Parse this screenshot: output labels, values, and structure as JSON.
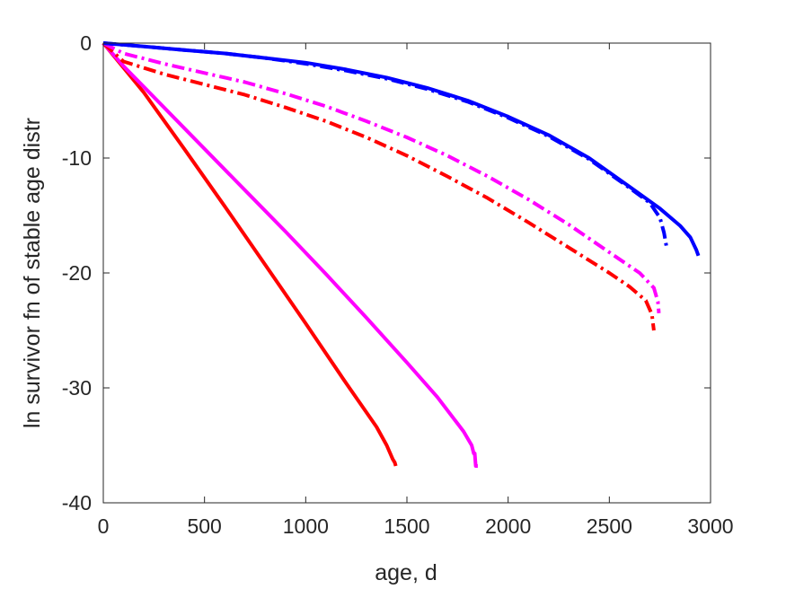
{
  "chart_data": {
    "type": "line",
    "title": "",
    "xlabel": "age, d",
    "ylabel": "ln survivor fn of stable age distr",
    "xlim": [
      0,
      3000
    ],
    "ylim": [
      -40,
      0
    ],
    "xticks": [
      0,
      500,
      1000,
      1500,
      2000,
      2500,
      3000
    ],
    "yticks": [
      0,
      -10,
      -20,
      -30,
      -40
    ],
    "xtick_labels": [
      "0",
      "500",
      "1000",
      "1500",
      "2000",
      "2500",
      "3000"
    ],
    "ytick_labels": [
      "0",
      "-10",
      "-20",
      "-30",
      "-40"
    ],
    "grid": false,
    "legend": "none",
    "series": [
      {
        "color": "#ff0000",
        "style": "solid",
        "x": [
          0,
          200,
          400,
          600,
          800,
          1000,
          1200,
          1350,
          1400,
          1430,
          1440,
          1445
        ],
        "y": [
          0,
          -4.3,
          -9.2,
          -14.2,
          -19.3,
          -24.4,
          -29.6,
          -33.4,
          -35.0,
          -36.2,
          -36.5,
          -36.8
        ]
      },
      {
        "color": "#ff00ff",
        "style": "solid",
        "x": [
          0,
          100,
          300,
          500,
          700,
          900,
          1100,
          1300,
          1500,
          1650,
          1780,
          1820,
          1830,
          1835,
          1840,
          1850
        ],
        "y": [
          0,
          -2.0,
          -5.6,
          -9.2,
          -12.8,
          -16.4,
          -20.1,
          -23.9,
          -27.8,
          -30.8,
          -33.8,
          -35.0,
          -35.7,
          -35.7,
          -36.8,
          -36.8
        ]
      },
      {
        "color": "#ff0000",
        "style": "dashdot",
        "x": [
          0,
          100,
          300,
          500,
          700,
          900,
          1100,
          1300,
          1500,
          1700,
          1900,
          2100,
          2300,
          2500,
          2600,
          2680,
          2710,
          2720
        ],
        "y": [
          0,
          -1.6,
          -2.7,
          -3.6,
          -4.5,
          -5.6,
          -6.8,
          -8.2,
          -9.8,
          -11.6,
          -13.5,
          -15.6,
          -17.8,
          -20.0,
          -21.2,
          -22.4,
          -23.6,
          -25.0
        ]
      },
      {
        "color": "#ff00ff",
        "style": "dashdot",
        "x": [
          0,
          100,
          300,
          500,
          700,
          900,
          1100,
          1300,
          1500,
          1700,
          1900,
          2100,
          2300,
          2500,
          2650,
          2720,
          2740,
          2745
        ],
        "y": [
          0,
          -0.9,
          -1.8,
          -2.6,
          -3.4,
          -4.4,
          -5.5,
          -6.8,
          -8.2,
          -9.8,
          -11.6,
          -13.6,
          -15.8,
          -18.2,
          -20.0,
          -21.3,
          -22.5,
          -23.5
        ]
      },
      {
        "color": "#0000ff",
        "style": "solid",
        "x": [
          0,
          200,
          400,
          600,
          800,
          1000,
          1200,
          1400,
          1600,
          1800,
          2000,
          2200,
          2400,
          2600,
          2750,
          2850,
          2900,
          2930,
          2940
        ],
        "y": [
          0,
          -0.3,
          -0.6,
          -0.9,
          -1.3,
          -1.7,
          -2.3,
          -3.0,
          -3.9,
          -5.0,
          -6.4,
          -8.0,
          -10.0,
          -12.5,
          -14.4,
          -15.9,
          -16.9,
          -18.0,
          -18.5
        ]
      },
      {
        "color": "#0000ff",
        "style": "dashdot",
        "x": [
          0,
          200,
          400,
          600,
          800,
          1000,
          1200,
          1400,
          1600,
          1800,
          2000,
          2200,
          2400,
          2600,
          2700,
          2750,
          2770,
          2785
        ],
        "y": [
          0,
          -0.3,
          -0.6,
          -0.9,
          -1.3,
          -1.8,
          -2.4,
          -3.1,
          -4.0,
          -5.1,
          -6.5,
          -8.1,
          -10.1,
          -12.6,
          -13.9,
          -15.2,
          -16.5,
          -18.0
        ]
      }
    ]
  }
}
